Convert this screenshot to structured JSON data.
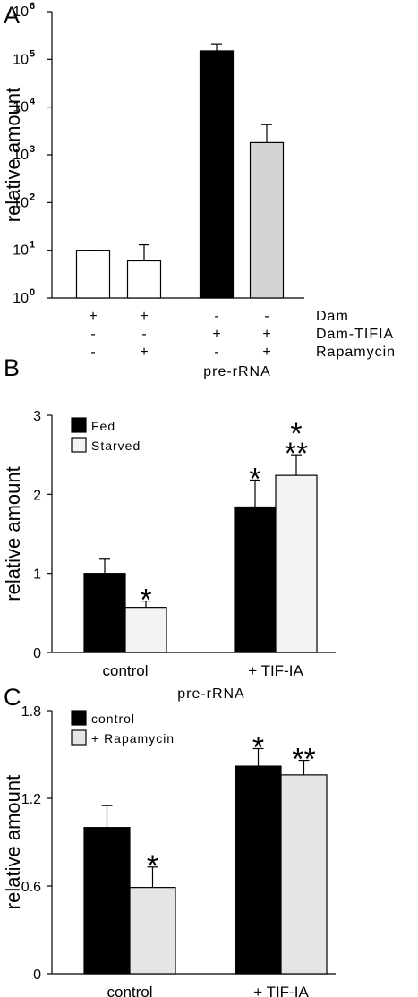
{
  "chart_data": [
    {
      "type": "bar",
      "panel_label": "A",
      "ylabel": "relative amount",
      "yscale": "log",
      "ylim": [
        1,
        1000000
      ],
      "yticks": [
        {
          "base": "10",
          "exp": "0"
        },
        {
          "base": "10",
          "exp": "1"
        },
        {
          "base": "10",
          "exp": "2"
        },
        {
          "base": "10",
          "exp": "3"
        },
        {
          "base": "10",
          "exp": "4"
        },
        {
          "base": "10",
          "exp": "5"
        },
        {
          "base": "10",
          "exp": "6"
        }
      ],
      "values": [
        10,
        6,
        150000,
        1800
      ],
      "errors_upper": [
        10,
        13,
        210000,
        4300
      ],
      "bar_colors": [
        "#ffffff",
        "#ffffff",
        "#000000",
        "#d4d4d4"
      ],
      "condition_rows": [
        {
          "label": "Dam",
          "signs": [
            "+",
            "+",
            "-",
            "-"
          ]
        },
        {
          "label": "Dam-TIFIA",
          "signs": [
            "-",
            "-",
            "+",
            "+"
          ]
        },
        {
          "label": "Rapamycin",
          "signs": [
            "-",
            "+",
            "-",
            "+"
          ]
        }
      ]
    },
    {
      "type": "bar",
      "panel_label": "B",
      "title": "pre-rRNA",
      "ylabel": "relative amount",
      "ylim": [
        0,
        3
      ],
      "yticks": [
        "0",
        "1",
        "2",
        "3"
      ],
      "categories": [
        "control",
        "+ TIF-IA"
      ],
      "series": [
        {
          "name": "Fed",
          "color": "#000000",
          "values": [
            1.0,
            1.84
          ],
          "errors": [
            0.18,
            0.34
          ]
        },
        {
          "name": "Starved",
          "color": "#f3f3f3",
          "values": [
            0.57,
            2.24
          ],
          "errors": [
            0.08,
            0.26
          ]
        }
      ],
      "annotations": [
        {
          "text": "*",
          "category": 0,
          "series": 1
        },
        {
          "text": "*",
          "category": 1,
          "series": 0
        },
        {
          "text": "*",
          "category": 1,
          "series": 1,
          "line": 1
        },
        {
          "text": "**",
          "category": 1,
          "series": 1,
          "line": 2
        }
      ],
      "legend": "top-left"
    },
    {
      "type": "bar",
      "panel_label": "C",
      "title": "pre-rRNA",
      "ylabel": "relative amount",
      "ylim": [
        0,
        1.8
      ],
      "yticks": [
        "0",
        "0.6",
        "1.2",
        "1.8"
      ],
      "categories": [
        "control",
        "+ TIF-IA"
      ],
      "series": [
        {
          "name": "control",
          "color": "#000000",
          "values": [
            1.0,
            1.42
          ],
          "errors": [
            0.15,
            0.12
          ]
        },
        {
          "name": "+ Rapamycin",
          "color": "#e5e5e5",
          "values": [
            0.59,
            1.36
          ],
          "errors": [
            0.14,
            0.1
          ]
        }
      ],
      "annotations": [
        {
          "text": "*",
          "category": 0,
          "series": 1
        },
        {
          "text": "*",
          "category": 1,
          "series": 0
        },
        {
          "text": "**",
          "category": 1,
          "series": 1
        }
      ],
      "legend": "top-left"
    }
  ]
}
